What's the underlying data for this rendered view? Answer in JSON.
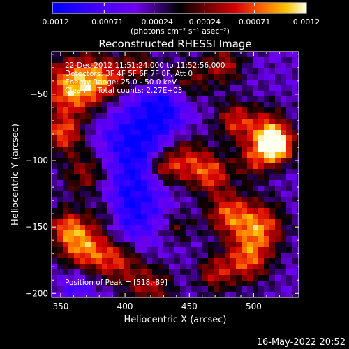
{
  "chart_data": {
    "type": "heatmap",
    "title": "Reconstructed RHESSI Image",
    "xlabel": "Heliocentric X (arcsec)",
    "ylabel": "Heliocentric Y (arcsec)",
    "xlim": [
      343,
      535
    ],
    "ylim": [
      -203,
      -18
    ],
    "x_ticks": [
      350,
      400,
      450,
      500
    ],
    "x_tick_labels": [
      "350",
      "400",
      "450",
      "500"
    ],
    "y_ticks": [
      -50,
      -100,
      -150,
      -200
    ],
    "y_tick_labels": [
      "−50",
      "−100",
      "−150",
      "−200"
    ],
    "colorbar": {
      "range": [
        -0.0012,
        0.0012
      ],
      "ticks": [
        -0.0012,
        -0.00071,
        -0.00024,
        0.00024,
        0.00071,
        0.0012
      ],
      "tick_labels": [
        "−0.0012",
        "−0.00071",
        "−0.00024",
        "0.00024",
        "0.00071",
        "0.0012"
      ],
      "units_label": "(photons cm⁻² s⁻¹ asec⁻²)"
    },
    "info_lines": [
      "22-Dec-2012 11:51:24.000 to 11:52:56.000",
      "Detectors: 3F 4F 5F 6F 7F 8F, Att 0",
      "Energy Range: 25.0 - 50.0 keV",
      "Clean     Total counts: 2.27E+03"
    ],
    "peak_label": "Position of Peak = [518,-89]",
    "peak_position": [
      518,
      -89
    ]
  },
  "footer": {
    "timestamp": "16-May-2022 20:52"
  }
}
